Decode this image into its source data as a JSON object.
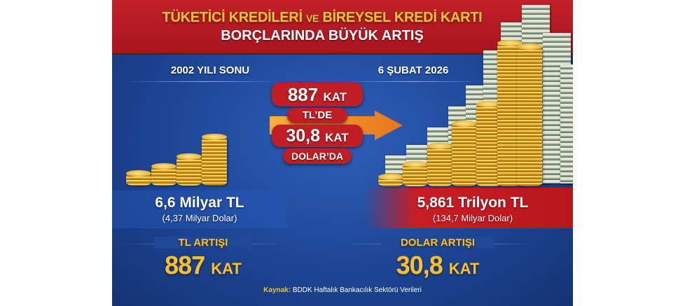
{
  "header": {
    "title_part1": "TÜKETİCİ KREDİLERİ",
    "title_connector": "VE",
    "title_part2": "BİREYSEL KREDİ KARTI",
    "title_line2": "BORÇLARINDA BÜYÜK ARTIŞ"
  },
  "left": {
    "date": "2002 YILI SONU",
    "value": "6,6 Milyar TL",
    "value_usd": "(4,37 Milyar Dolar)",
    "increase_label": "TL ARTIŞI",
    "increase_number": "887",
    "increase_unit": "KAT"
  },
  "right": {
    "date": "6 ŞUBAT 2026",
    "value": "5,861 Trilyon TL",
    "value_usd": "(134,7 Milyar Dolar)",
    "increase_label": "DOLAR ARTIŞI",
    "increase_number": "30,8",
    "increase_unit": "KAT"
  },
  "center_badge": {
    "tl_number": "887",
    "tl_unit": "KAT",
    "tl_label": "TL’DE",
    "usd_number": "30,8",
    "usd_unit": "KAT",
    "usd_label": "DOLAR’DA"
  },
  "source": {
    "label": "Kaynak:",
    "text": "BDDK Haftalık Bankacılık Sektörü Verileri"
  },
  "colors": {
    "header_red": "#c2202a",
    "background_blue": "#1d4596",
    "gold": "#f3bf3a",
    "arrow_orange": "#f08a1c"
  },
  "icons": [
    "gold-coin-stacks",
    "cash-bundle-stacks",
    "arrow-right"
  ]
}
